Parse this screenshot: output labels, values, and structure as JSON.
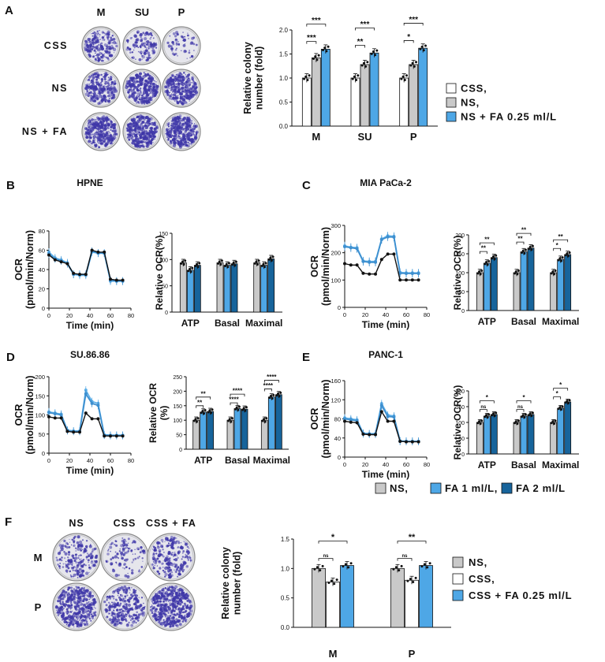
{
  "colors": {
    "gray": "#c9c9c9",
    "white": "#ffffff",
    "light_blue": "#4ea7e6",
    "dark_blue": "#17649b",
    "black": "#111111",
    "violet": "#3f37a8"
  },
  "panel_a": {
    "letter": "A",
    "col_labels": [
      "M",
      "SU",
      "P"
    ],
    "row_labels": [
      "CSS",
      "NS",
      "NS + FA"
    ],
    "chart_data": {
      "type": "bar",
      "ylabel": "Relative colony number (fold)",
      "ylabel_lines": [
        "Relative colony",
        "number (fold)"
      ],
      "ylim": [
        0,
        2.0
      ],
      "yticks": [
        "0.0",
        "0.5",
        "1.0",
        "1.5",
        "2.0"
      ],
      "categories": [
        "M",
        "SU",
        "P"
      ],
      "series": [
        {
          "name": "CSS,",
          "values": [
            1.0,
            1.0,
            1.0
          ]
        },
        {
          "name": "NS,",
          "values": [
            1.42,
            1.28,
            1.28
          ]
        },
        {
          "name": "NS + FA 0.25 ml/L",
          "values": [
            1.6,
            1.52,
            1.62
          ]
        }
      ],
      "significance": [
        [
          "***",
          "***"
        ],
        [
          "**",
          "***"
        ],
        [
          "*",
          "***"
        ]
      ]
    }
  },
  "ocr_panels": [
    {
      "letter": "B",
      "title": "HPNE",
      "chart_data": {
        "type": "line",
        "xlabel": "Time (min)",
        "ylabel": "OCR (pmol/min/Norm)",
        "ylabel_lines": [
          "OCR",
          "(pmol/min/Norm)"
        ],
        "ylim": [
          0,
          80
        ],
        "yticks": [
          "0",
          "20",
          "40",
          "60",
          "80"
        ],
        "xticks": [
          "0",
          "20",
          "40",
          "60",
          "80"
        ],
        "x": [
          0,
          6,
          12,
          18,
          24,
          30,
          36,
          42,
          48,
          54,
          60,
          66,
          72
        ],
        "series": [
          {
            "name": "NS",
            "values": [
              55,
              50,
              48,
              46,
              36,
              35,
              35,
              60,
              58,
              58,
              30,
              29,
              29
            ]
          },
          {
            "name": "FA 1 ml/L",
            "values": [
              58,
              52,
              50,
              47,
              35,
              34,
              34,
              58,
              57,
              57,
              28,
              28,
              28
            ]
          },
          {
            "name": "FA 2 ml/L",
            "values": [
              56,
              51,
              49,
              46,
              35,
              35,
              35,
              59,
              57,
              57,
              29,
              28,
              28
            ]
          }
        ]
      },
      "rel_chart_data": {
        "type": "bar",
        "ylabel": "Relative OCR(%)",
        "ylabel_lines": [
          "Relative OCR(%)"
        ],
        "ylim": [
          0,
          160
        ],
        "yticks": [
          "0",
          "50",
          "100",
          "150"
        ],
        "categories": [
          "ATP",
          "Basal",
          "Maximal"
        ],
        "series": [
          {
            "name": "NS",
            "values": [
              100,
              100,
              100
            ]
          },
          {
            "name": "FA 1 ml/L",
            "values": [
              85,
              95,
              95
            ]
          },
          {
            "name": "FA 2 ml/L",
            "values": [
              95,
              98,
              108
            ]
          }
        ],
        "significance": []
      }
    },
    {
      "letter": "C",
      "title": "MIA PaCa-2",
      "chart_data": {
        "type": "line",
        "xlabel": "Time (min)",
        "ylabel": "OCR (pmol/min/Norm)",
        "ylabel_lines": [
          "OCR",
          "(pmol/min/Norm)"
        ],
        "ylim": [
          0,
          300
        ],
        "yticks": [
          "0",
          "100",
          "200",
          "300"
        ],
        "xticks": [
          "0",
          "20",
          "40",
          "60",
          "80"
        ],
        "x": [
          0,
          6,
          12,
          18,
          24,
          30,
          36,
          42,
          48,
          54,
          60,
          66,
          72
        ],
        "series": [
          {
            "name": "NS",
            "values": [
              160,
              155,
              155,
              125,
              122,
              122,
              175,
              195,
              195,
              100,
              100,
              100,
              100
            ]
          },
          {
            "name": "FA 1 ml/L",
            "values": [
              225,
              220,
              218,
              170,
              168,
              168,
              250,
              262,
              260,
              128,
              126,
              126,
              126
            ]
          },
          {
            "name": "FA 2 ml/L",
            "values": [
              222,
              218,
              215,
              168,
              165,
              165,
              248,
              258,
              257,
              125,
              124,
              124,
              124
            ]
          }
        ]
      },
      "rel_chart_data": {
        "type": "bar",
        "ylabel": "Relative OCR(%)",
        "ylabel_lines": [
          "Relative OCR(%)"
        ],
        "ylim": [
          0,
          200
        ],
        "yticks": [
          "0",
          "50",
          "100",
          "150",
          "200"
        ],
        "categories": [
          "ATP",
          "Basal",
          "Maximal"
        ],
        "series": [
          {
            "name": "NS",
            "values": [
              100,
              100,
              100
            ]
          },
          {
            "name": "FA 1 ml/L",
            "values": [
              125,
              155,
              135
            ]
          },
          {
            "name": "FA 2 ml/L",
            "values": [
              140,
              165,
              148
            ]
          }
        ],
        "significance": [
          [
            "**",
            "**"
          ],
          [
            "**",
            "**"
          ],
          [
            "*",
            "**"
          ]
        ]
      }
    },
    {
      "letter": "D",
      "title": "SU.86.86",
      "chart_data": {
        "type": "line",
        "xlabel": "Time (min)",
        "ylabel": "OCR (pmol/min/Norm)",
        "ylabel_lines": [
          "OCR",
          "(pmol/min/Norm)"
        ],
        "ylim": [
          0,
          200
        ],
        "yticks": [
          "0",
          "50",
          "100",
          "150",
          "200"
        ],
        "xticks": [
          "0",
          "20",
          "40",
          "60",
          "80"
        ],
        "x": [
          0,
          6,
          12,
          18,
          24,
          30,
          36,
          42,
          48,
          54,
          60,
          66,
          72
        ],
        "series": [
          {
            "name": "NS",
            "values": [
              95,
              92,
              92,
              57,
              55,
              55,
              105,
              90,
              90,
              45,
              45,
              45,
              45
            ]
          },
          {
            "name": "FA 1 ml/L",
            "values": [
              108,
              105,
              102,
              60,
              58,
              58,
              165,
              135,
              130,
              48,
              47,
              47,
              47
            ]
          },
          {
            "name": "FA 2 ml/L",
            "values": [
              106,
              103,
              100,
              59,
              57,
              57,
              155,
              130,
              125,
              47,
              46,
              46,
              46
            ]
          }
        ]
      },
      "rel_chart_data": {
        "type": "bar",
        "ylabel": "Relative OCR (%)",
        "ylabel_lines": [
          "Relative OCR",
          "(%)"
        ],
        "ylim": [
          0,
          250
        ],
        "yticks": [
          "0",
          "50",
          "100",
          "150",
          "200",
          "250"
        ],
        "categories": [
          "ATP",
          "Basal",
          "Maximal"
        ],
        "series": [
          {
            "name": "NS",
            "values": [
              100,
              100,
              100
            ]
          },
          {
            "name": "FA 1 ml/L",
            "values": [
              128,
              140,
              180
            ]
          },
          {
            "name": "FA 2 ml/L",
            "values": [
              130,
              138,
              188
            ]
          }
        ],
        "significance": [
          [
            "**",
            "**"
          ],
          [
            "****",
            "****"
          ],
          [
            "****",
            "****"
          ]
        ]
      }
    },
    {
      "letter": "E",
      "title": "PANC-1",
      "chart_data": {
        "type": "line",
        "xlabel": "Time (min)",
        "ylabel": "OCR (pmol/min/Norm)",
        "ylabel_lines": [
          "OCR",
          "(pmol/min/Norm)"
        ],
        "ylim": [
          0,
          160
        ],
        "yticks": [
          "0",
          "40",
          "80",
          "120",
          "160"
        ],
        "xticks": [
          "0",
          "20",
          "40",
          "60",
          "80"
        ],
        "x": [
          0,
          6,
          12,
          18,
          24,
          30,
          36,
          42,
          48,
          54,
          60,
          66,
          72
        ],
        "series": [
          {
            "name": "NS",
            "values": [
              75,
              73,
              72,
              48,
              47,
              47,
              95,
              75,
              75,
              33,
              32,
              32,
              32
            ]
          },
          {
            "name": "FA 1 ml/L",
            "values": [
              82,
              80,
              78,
              50,
              49,
              49,
              112,
              88,
              86,
              34,
              33,
              33,
              33
            ]
          },
          {
            "name": "FA 2 ml/L",
            "values": [
              80,
              78,
              76,
              49,
              48,
              48,
              108,
              85,
              84,
              33,
              33,
              33,
              33
            ]
          }
        ]
      },
      "rel_chart_data": {
        "type": "bar",
        "ylabel": "Relative OCR(%)",
        "ylabel_lines": [
          "Relative OCR(%)"
        ],
        "ylim": [
          0,
          200
        ],
        "yticks": [
          "0",
          "50",
          "100",
          "150",
          "200"
        ],
        "categories": [
          "ATP",
          "Basal",
          "Maximal"
        ],
        "series": [
          {
            "name": "NS",
            "values": [
              100,
              100,
              100
            ]
          },
          {
            "name": "FA 1 ml/L",
            "values": [
              120,
              120,
              145
            ]
          },
          {
            "name": "FA 2 ml/L",
            "values": [
              125,
              125,
              165
            ]
          }
        ],
        "significance": [
          [
            "ns",
            "*"
          ],
          [
            "ns",
            "*"
          ],
          [
            "*",
            "*"
          ]
        ]
      }
    }
  ],
  "ocr_legend": [
    "NS,",
    "FA 1 ml/L,",
    "FA 2 ml/L"
  ],
  "panel_f": {
    "letter": "F",
    "col_labels": [
      "NS",
      "CSS",
      "CSS + FA"
    ],
    "row_labels": [
      "M",
      "P"
    ],
    "chart_data": {
      "type": "bar",
      "ylabel": "Relative colony number (fold)",
      "ylabel_lines": [
        "Relative colony",
        "number (fold)"
      ],
      "ylim": [
        0,
        1.5
      ],
      "yticks": [
        "0.0",
        "0.5",
        "1.0",
        "1.5"
      ],
      "categories": [
        "M",
        "P"
      ],
      "series": [
        {
          "name": "NS,",
          "values": [
            1.0,
            1.0
          ]
        },
        {
          "name": "CSS,",
          "values": [
            0.77,
            0.8
          ]
        },
        {
          "name": "CSS + FA 0.25 ml/L",
          "values": [
            1.05,
            1.05
          ]
        }
      ],
      "significance": [
        [
          "ns",
          "*"
        ],
        [
          "ns",
          "**"
        ]
      ]
    }
  }
}
